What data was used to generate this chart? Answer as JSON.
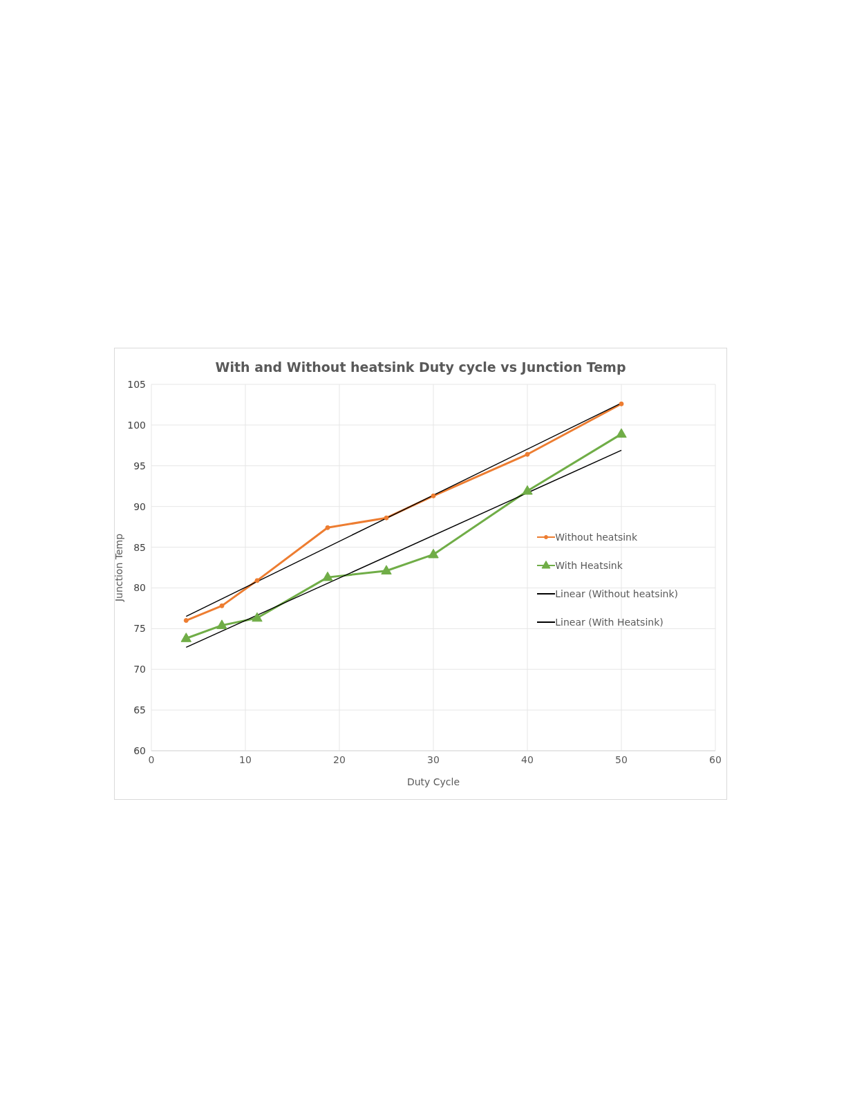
{
  "chart_data": {
    "type": "line",
    "title": "With and Without heatsink Duty cycle vs Junction Temp",
    "xlabel": "Duty Cycle",
    "ylabel": "Junction Temp",
    "xlim": [
      0,
      60
    ],
    "xticks": [
      0,
      10,
      20,
      30,
      40,
      50,
      60
    ],
    "ylim": [
      60,
      105
    ],
    "yticks": [
      60,
      65,
      70,
      75,
      80,
      85,
      90,
      95,
      100,
      105
    ],
    "grid": true,
    "legend": "right",
    "series": [
      {
        "name": "Without heatsink",
        "color": "#ed7d31",
        "marker": "circle",
        "x": [
          3.7,
          7.5,
          11.25,
          18.75,
          25,
          30,
          40,
          50
        ],
        "values": [
          76.0,
          77.8,
          80.9,
          87.4,
          88.6,
          91.3,
          96.4,
          102.6
        ]
      },
      {
        "name": "With Heatsink",
        "color": "#70ad47",
        "marker": "triangle",
        "x": [
          3.7,
          7.5,
          11.25,
          18.75,
          25,
          30,
          40,
          50
        ],
        "values": [
          73.8,
          75.4,
          76.3,
          81.3,
          82.1,
          84.1,
          91.9,
          98.9
        ]
      },
      {
        "name": "Linear (Without heatsink)",
        "color": "#000000",
        "marker": "none",
        "line_style": "solid",
        "x": [
          3.7,
          50
        ],
        "values": [
          76.5,
          102.7
        ]
      },
      {
        "name": "Linear (With Heatsink)",
        "color": "#000000",
        "marker": "none",
        "line_style": "solid",
        "x": [
          3.7,
          50
        ],
        "values": [
          72.7,
          96.9
        ]
      }
    ]
  }
}
